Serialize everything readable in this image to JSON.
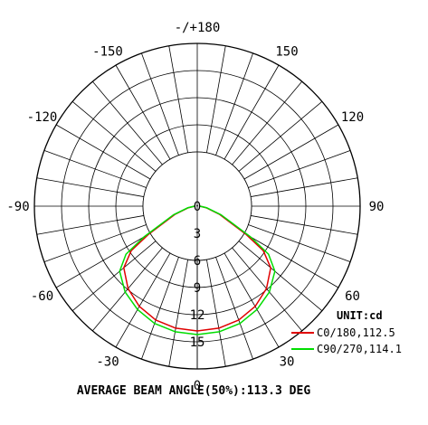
{
  "chart_data": {
    "type": "polar-line",
    "angle_labels": [
      {
        "angle": 180,
        "text": "-/+180"
      },
      {
        "angle": 150,
        "text": "150"
      },
      {
        "angle": 120,
        "text": "120"
      },
      {
        "angle": 90,
        "text": "90"
      },
      {
        "angle": 60,
        "text": "60"
      },
      {
        "angle": 30,
        "text": "30"
      },
      {
        "angle": 0,
        "text": "0"
      },
      {
        "angle": -30,
        "text": "-30"
      },
      {
        "angle": -60,
        "text": "-60"
      },
      {
        "angle": -90,
        "text": "-90"
      },
      {
        "angle": -120,
        "text": "-120"
      },
      {
        "angle": -150,
        "text": "-150"
      }
    ],
    "radial_max": 18,
    "radial_ticks": [
      "0",
      "3",
      "6",
      "9",
      "12",
      "15"
    ],
    "grid": true,
    "unit_label": "UNIT:cd",
    "legend_position": "bottom-right",
    "series": [
      {
        "name": "C0/180,112.5",
        "color": "#e00000",
        "points": [
          [
            0,
            13.8
          ],
          [
            10,
            13.7
          ],
          [
            20,
            13.4
          ],
          [
            30,
            12.8
          ],
          [
            40,
            11.9
          ],
          [
            50,
            10.6
          ],
          [
            56,
            8.8
          ],
          [
            60,
            6.2
          ],
          [
            70,
            2.6
          ],
          [
            80,
            1.0
          ],
          [
            90,
            0.3
          ]
        ]
      },
      {
        "name": "C90/270,114.1",
        "color": "#00dd00",
        "points": [
          [
            0,
            14.2
          ],
          [
            10,
            14.1
          ],
          [
            20,
            13.8
          ],
          [
            30,
            13.2
          ],
          [
            40,
            12.4
          ],
          [
            50,
            11.2
          ],
          [
            56,
            9.5
          ],
          [
            60,
            6.8
          ],
          [
            70,
            2.8
          ],
          [
            80,
            1.1
          ],
          [
            90,
            0.3
          ]
        ]
      }
    ],
    "annotation": "AVERAGE BEAM ANGLE(50%):113.3 DEG"
  }
}
